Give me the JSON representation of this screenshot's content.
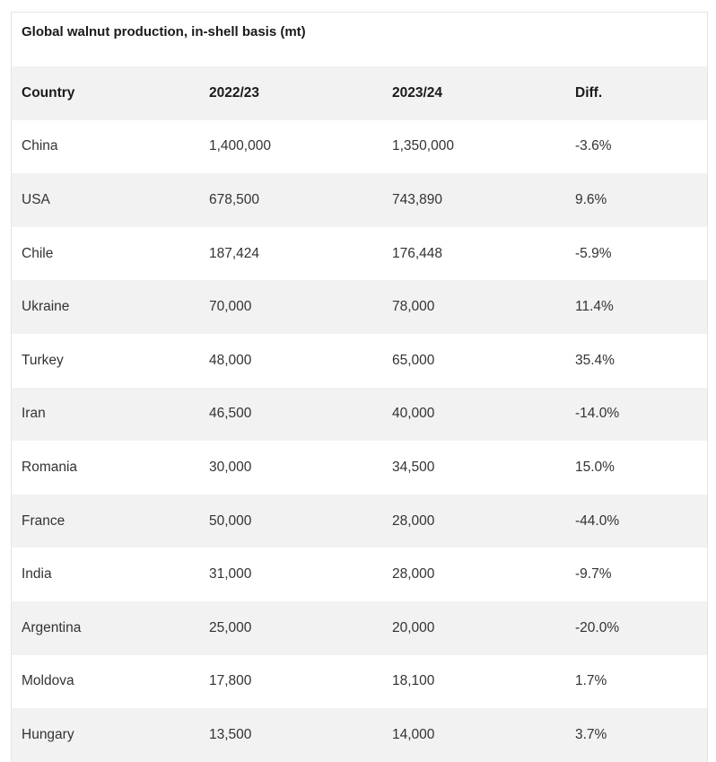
{
  "table": {
    "title": "Global walnut production, in-shell basis (mt)",
    "headers": [
      "Country",
      "2022/23",
      "2023/24",
      "Diff."
    ],
    "rows": [
      [
        "China",
        "1,400,000",
        "1,350,000",
        "-3.6%"
      ],
      [
        "USA",
        "678,500",
        "743,890",
        "9.6%"
      ],
      [
        "Chile",
        "187,424",
        "176,448",
        "-5.9%"
      ],
      [
        "Ukraine",
        "70,000",
        "78,000",
        "11.4%"
      ],
      [
        "Turkey",
        "48,000",
        "65,000",
        "35.4%"
      ],
      [
        "Iran",
        "46,500",
        "40,000",
        "-14.0%"
      ],
      [
        "Romania",
        "30,000",
        "34,500",
        "15.0%"
      ],
      [
        "France",
        "50,000",
        "28,000",
        "-44.0%"
      ],
      [
        "India",
        "31,000",
        "28,000",
        "-9.7%"
      ],
      [
        "Argentina",
        "25,000",
        "20,000",
        "-20.0%"
      ],
      [
        "Moldova",
        "17,800",
        "18,100",
        "1.7%"
      ],
      [
        "Hungary",
        "13,500",
        "14,000",
        "3.7%"
      ]
    ]
  }
}
